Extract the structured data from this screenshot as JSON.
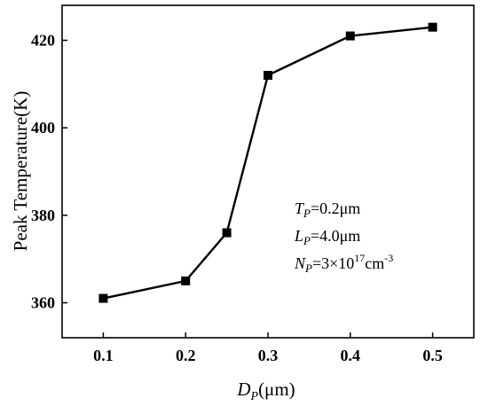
{
  "chart_data": {
    "type": "line",
    "title": "",
    "xlabel": {
      "main": "D",
      "sub": "P",
      "unit": "(μm)"
    },
    "ylabel": "Peak Temperature(K)",
    "xlim": [
      0.05,
      0.55
    ],
    "ylim": [
      352,
      428
    ],
    "x_ticks": [
      "0.1",
      "0.2",
      "0.3",
      "0.4",
      "0.5"
    ],
    "y_ticks": [
      "360",
      "380",
      "400",
      "420"
    ],
    "grid": false,
    "legend": "none",
    "series": [
      {
        "x": [
          0.1,
          0.2,
          0.25,
          0.3,
          0.4,
          0.5
        ],
        "y": [
          361,
          365,
          376,
          412,
          421,
          423
        ],
        "marker": "square",
        "color": "#000000"
      }
    ],
    "annotations": [
      {
        "main": "T",
        "sub": "P",
        "rest": "=0.2μm"
      },
      {
        "main": "L",
        "sub": "P",
        "rest": "=4.0μm"
      },
      {
        "main": "N",
        "sub": "P",
        "rest": "=3×10",
        "sup": "17",
        "rest2": "cm",
        "sup2": "-3"
      }
    ]
  }
}
